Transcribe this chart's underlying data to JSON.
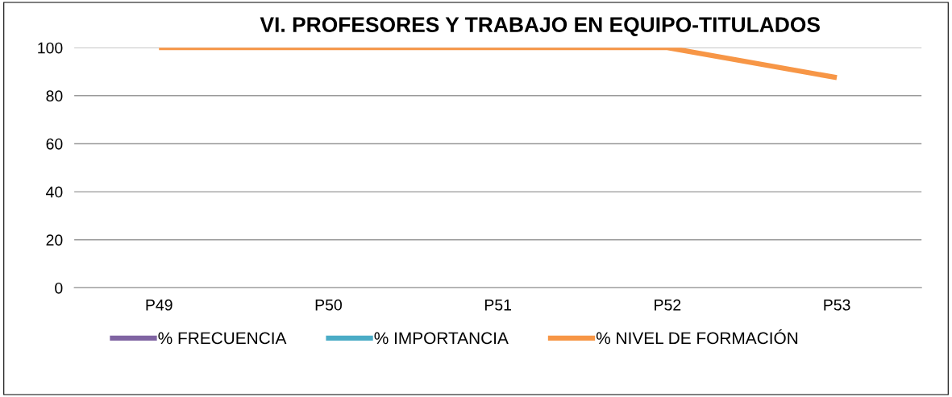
{
  "chart_data": {
    "type": "line",
    "title": "VI. PROFESORES Y TRABAJO EN EQUIPO-TITULADOS",
    "categories": [
      "P49",
      "P50",
      "P51",
      "P52",
      "P53"
    ],
    "series": [
      {
        "name": "% FRECUENCIA",
        "color": "#8064a2",
        "values": [
          null,
          null,
          null,
          null,
          null
        ]
      },
      {
        "name": "% IMPORTANCIA",
        "color": "#4bacc6",
        "values": [
          null,
          null,
          null,
          null,
          null
        ]
      },
      {
        "name": "% NIVEL DE FORMACIÓN",
        "color": "#f79646",
        "values": [
          100,
          100,
          100,
          100,
          87.5
        ]
      }
    ],
    "ylim": [
      0,
      100
    ],
    "yticks": [
      0,
      20,
      40,
      60,
      80,
      100
    ],
    "grid": "y",
    "legend": "bottom",
    "marker": "none",
    "line_style": "solid"
  }
}
